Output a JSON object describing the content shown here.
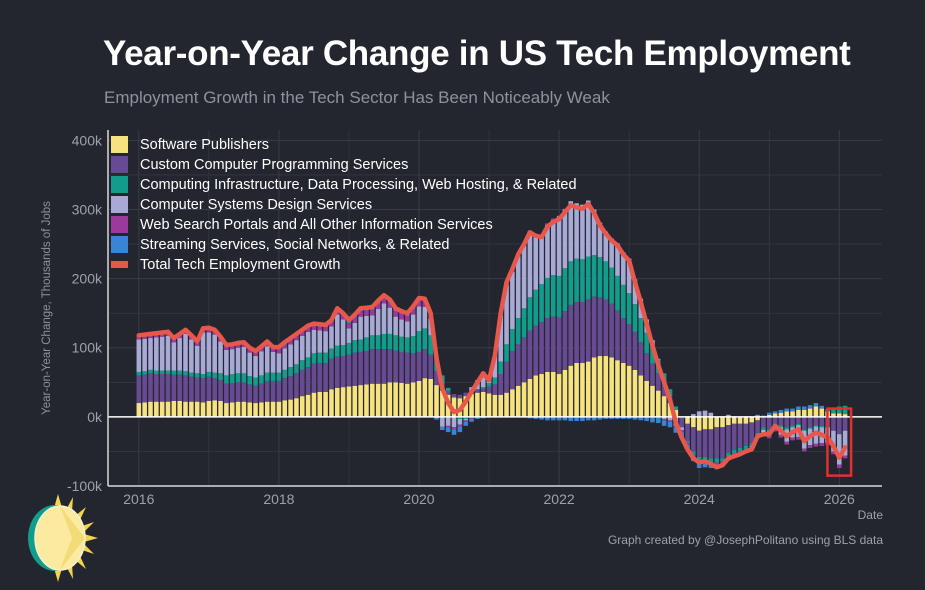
{
  "title": "Year-on-Year Change in US Tech Employment",
  "subtitle": "Employment Growth in the Tech Sector Has Been Noticeably Weak",
  "caption": "Graph created by @JosephPolitano using BLS data",
  "colors": {
    "background": "#23262e",
    "grid": "#393c45",
    "axis": "#d8d8d8",
    "total_line": "#e8574b",
    "highlight_box": "#e03030"
  },
  "chart_data": {
    "type": "bar",
    "stacked": true,
    "xlabel": "Date",
    "ylabel": "Year-on-Year Change, Thousands of Jobs",
    "x_start": "2016-01",
    "frequency": "monthly",
    "xlim": [
      2015.56,
      2026.61
    ],
    "ylim": [
      -100,
      415
    ],
    "x_ticks": [
      2016,
      2018,
      2020,
      2022,
      2024,
      2026
    ],
    "x_tick_labels": [
      "2016",
      "2018",
      "2020",
      "2022",
      "2024",
      "2026"
    ],
    "y_ticks": [
      -100,
      0,
      100,
      200,
      300,
      400
    ],
    "y_tick_labels": [
      "-100k",
      "0k",
      "100k",
      "200k",
      "300k",
      "400k"
    ],
    "grid": true,
    "legend_position": "top-left",
    "highlight": {
      "from": "2025-12",
      "to": "2026-02"
    },
    "series": [
      {
        "name": "Software Publishers",
        "color": "#f6e27f",
        "values": [
          20,
          21,
          22,
          22,
          22,
          22,
          23,
          23,
          22,
          22,
          22,
          21,
          23,
          24,
          23,
          20,
          21,
          22,
          22,
          21,
          20,
          21,
          22,
          22,
          22,
          24,
          25,
          27,
          30,
          32,
          35,
          36,
          36,
          40,
          42,
          43,
          44,
          45,
          46,
          47,
          48,
          48,
          48,
          50,
          50,
          49,
          48,
          50,
          52,
          56,
          55,
          46,
          38,
          32,
          28,
          27,
          30,
          33,
          35,
          36,
          34,
          32,
          32,
          35,
          40,
          45,
          50,
          55,
          60,
          62,
          65,
          65,
          62,
          68,
          74,
          78,
          78,
          80,
          86,
          88,
          88,
          86,
          82,
          78,
          74,
          68,
          60,
          52,
          45,
          38,
          30,
          20,
          10,
          0,
          -10,
          -15,
          -20,
          -18,
          -18,
          -15,
          -15,
          -12,
          -10,
          -10,
          -10,
          -8,
          -5,
          0,
          3,
          5,
          6,
          8,
          8,
          10,
          10,
          12,
          15,
          12,
          8,
          5,
          5,
          4
        ]
      },
      {
        "name": "Custom Computer Programming Services",
        "color": "#684a92",
        "values": [
          40,
          40,
          41,
          40,
          40,
          40,
          38,
          38,
          38,
          36,
          35,
          35,
          35,
          32,
          30,
          28,
          28,
          28,
          28,
          26,
          25,
          27,
          30,
          30,
          30,
          32,
          34,
          36,
          38,
          40,
          42,
          42,
          42,
          44,
          45,
          45,
          46,
          48,
          48,
          48,
          50,
          50,
          50,
          48,
          46,
          45,
          45,
          42,
          42,
          42,
          35,
          20,
          10,
          5,
          5,
          5,
          5,
          5,
          5,
          5,
          10,
          15,
          30,
          45,
          55,
          60,
          65,
          70,
          72,
          75,
          78,
          80,
          82,
          85,
          88,
          88,
          88,
          90,
          88,
          85,
          82,
          78,
          72,
          65,
          60,
          55,
          48,
          40,
          32,
          25,
          18,
          10,
          0,
          -15,
          -25,
          -35,
          -38,
          -40,
          -42,
          -45,
          -45,
          -40,
          -38,
          -35,
          -32,
          -30,
          -18,
          -15,
          -18,
          -10,
          -12,
          -15,
          -12,
          -10,
          -18,
          -15,
          -12,
          -13,
          -15,
          -20,
          -25,
          -20
        ]
      },
      {
        "name": "Computing Infrastructure, Data Processing, Web Hosting, & Related",
        "color": "#119c8c",
        "values": [
          5,
          5,
          5,
          5,
          5,
          5,
          6,
          6,
          6,
          6,
          6,
          6,
          7,
          8,
          10,
          12,
          13,
          13,
          13,
          12,
          12,
          12,
          12,
          12,
          12,
          12,
          13,
          13,
          14,
          14,
          15,
          15,
          15,
          15,
          16,
          16,
          17,
          18,
          18,
          20,
          20,
          20,
          22,
          22,
          22,
          22,
          22,
          25,
          30,
          30,
          28,
          20,
          12,
          5,
          0,
          -3,
          -3,
          -2,
          0,
          2,
          5,
          10,
          18,
          25,
          32,
          38,
          42,
          48,
          52,
          55,
          58,
          60,
          60,
          62,
          63,
          63,
          62,
          62,
          60,
          58,
          55,
          52,
          50,
          48,
          45,
          40,
          35,
          30,
          25,
          20,
          15,
          10,
          5,
          0,
          -3,
          -5,
          -6,
          -6,
          -6,
          -6,
          -5,
          -5,
          -5,
          -5,
          -5,
          -4,
          -4,
          -4,
          -3,
          -3,
          -3,
          -3,
          -3,
          -2,
          -2,
          -2,
          -2,
          -2,
          0,
          5,
          10,
          12
        ]
      },
      {
        "name": "Computer Systems Design Services",
        "color": "#a8aad6",
        "values": [
          47,
          47,
          46,
          48,
          49,
          50,
          41,
          47,
          54,
          48,
          40,
          60,
          57,
          55,
          46,
          37,
          36,
          37,
          38,
          34,
          31,
          35,
          38,
          30,
          28,
          31,
          33,
          35,
          35,
          37,
          34,
          32,
          31,
          32,
          45,
          37,
          21,
          25,
          33,
          31,
          29,
          38,
          44,
          38,
          27,
          25,
          23,
          31,
          36,
          31,
          24,
          -2,
          -14,
          -13,
          -15,
          -8,
          -2,
          5,
          13,
          22,
          5,
          31,
          67,
          86,
          83,
          89,
          90,
          94,
          79,
          70,
          77,
          80,
          86,
          85,
          87,
          80,
          79,
          81,
          66,
          50,
          43,
          42,
          47,
          47,
          50,
          36,
          28,
          19,
          9,
          1,
          -3,
          -5,
          -13,
          -4,
          1,
          4,
          8,
          9,
          6,
          0,
          1,
          3,
          1,
          0,
          1,
          -2,
          2,
          -4,
          -6,
          -4,
          -11,
          -18,
          -15,
          -17,
          -26,
          -24,
          -25,
          -23,
          -22,
          -30,
          -44,
          -36
        ]
      },
      {
        "name": "Web Search Portals and All Other Information Services",
        "color": "#9a3a9c",
        "values": [
          6,
          6,
          6,
          6,
          6,
          6,
          6,
          6,
          6,
          6,
          6,
          6,
          6,
          6,
          6,
          6,
          6,
          6,
          6,
          6,
          6,
          6,
          6,
          6,
          6,
          6,
          6,
          6,
          6,
          6,
          6,
          6,
          6,
          6,
          6,
          6,
          8,
          8,
          8,
          8,
          8,
          8,
          8,
          8,
          8,
          8,
          8,
          8,
          8,
          8,
          6,
          3,
          0,
          -2,
          -3,
          -3,
          -2,
          -1,
          0,
          0,
          0,
          1,
          2,
          3,
          3,
          3,
          3,
          2,
          2,
          2,
          2,
          2,
          1,
          1,
          0,
          0,
          0,
          0,
          0,
          0,
          0,
          0,
          0,
          0,
          0,
          0,
          0,
          0,
          -1,
          -1,
          -2,
          -2,
          -2,
          -3,
          -3,
          -3,
          -4,
          -4,
          -4,
          -4,
          -4,
          -4,
          -4,
          -4,
          -4,
          -4,
          -4,
          -4,
          -4,
          -4,
          -4,
          -4,
          -4,
          -4,
          -4,
          -4,
          -4,
          -4,
          -4,
          -4,
          -5,
          -4
        ]
      },
      {
        "name": "Streaming Services, Social Networks, & Related",
        "color": "#3a84d6",
        "values": [
          0,
          0,
          0,
          0,
          0,
          0,
          0,
          0,
          0,
          0,
          0,
          0,
          1,
          1,
          1,
          1,
          1,
          1,
          1,
          1,
          1,
          1,
          1,
          1,
          3,
          3,
          3,
          3,
          3,
          3,
          3,
          3,
          3,
          3,
          3,
          3,
          4,
          4,
          4,
          4,
          4,
          4,
          4,
          4,
          4,
          4,
          4,
          4,
          4,
          4,
          2,
          -2,
          -5,
          -7,
          -8,
          -8,
          -6,
          -4,
          -3,
          -2,
          -1,
          0,
          1,
          1,
          1,
          0,
          0,
          -2,
          -3,
          -4,
          -5,
          -5,
          -5,
          -5,
          -6,
          -6,
          -6,
          -5,
          -5,
          -4,
          -3,
          -3,
          -3,
          -3,
          -3,
          -4,
          -5,
          -6,
          -7,
          -8,
          -8,
          -8,
          -8,
          -8,
          -7,
          -6,
          -6,
          -5,
          -4,
          -3,
          -2,
          -2,
          -1,
          0,
          0,
          1,
          1,
          2,
          3,
          3,
          4,
          4,
          4,
          5,
          5,
          5,
          5,
          4,
          3,
          2,
          0,
          0
        ]
      }
    ],
    "total": {
      "name": "Total Tech Employment Growth",
      "color": "#e8574b",
      "values": [
        118,
        119,
        120,
        121,
        122,
        123,
        114,
        120,
        126,
        118,
        109,
        128,
        129,
        126,
        116,
        104,
        105,
        107,
        108,
        100,
        95,
        102,
        109,
        101,
        101,
        108,
        114,
        120,
        126,
        132,
        135,
        134,
        133,
        140,
        157,
        150,
        140,
        148,
        157,
        158,
        159,
        168,
        176,
        170,
        157,
        153,
        150,
        160,
        172,
        171,
        150,
        85,
        41,
        20,
        7,
        10,
        22,
        36,
        50,
        63,
        53,
        89,
        150,
        195,
        214,
        235,
        250,
        267,
        262,
        260,
        275,
        282,
        286,
        296,
        306,
        303,
        301,
        308,
        295,
        277,
        265,
        255,
        248,
        235,
        226,
        195,
        166,
        135,
        103,
        75,
        50,
        25,
        -8,
        -30,
        -47,
        -60,
        -66,
        -64,
        -68,
        -73,
        -70,
        -60,
        -57,
        -54,
        -50,
        -47,
        -28,
        -25,
        -25,
        -13,
        -20,
        -28,
        -22,
        -18,
        -35,
        -28,
        -23,
        -26,
        -30,
        -42,
        -59,
        -44
      ]
    }
  }
}
